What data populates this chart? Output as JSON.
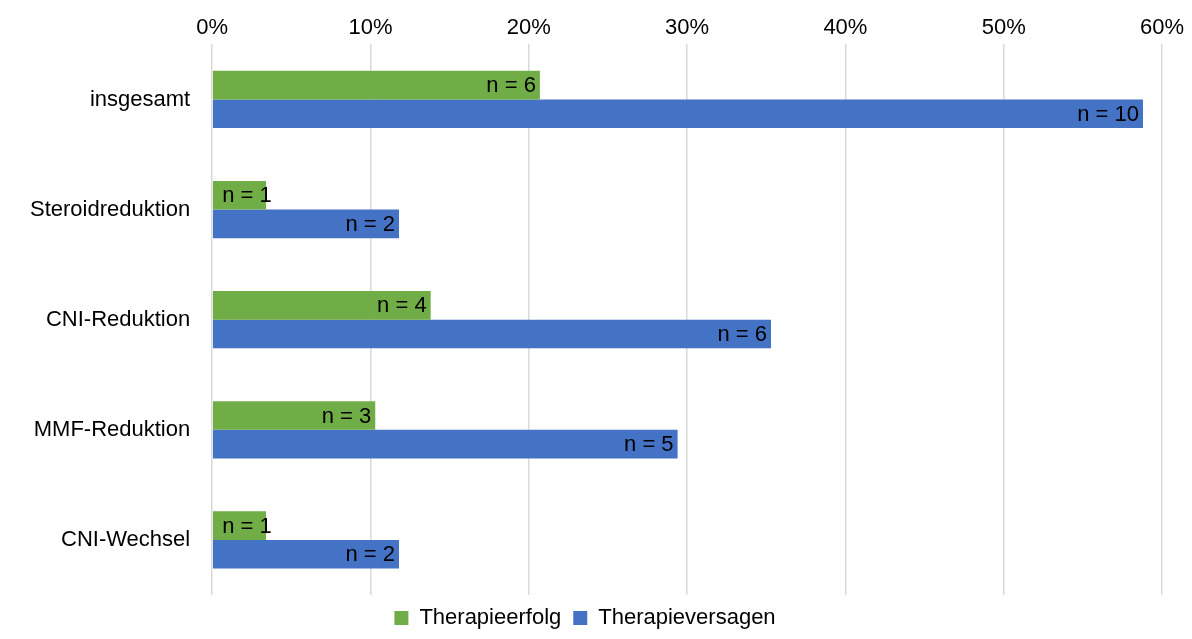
{
  "chart_data": {
    "type": "bar",
    "orientation": "horizontal",
    "categories": [
      "insgesamt",
      "Steroidreduktion",
      "CNI-Reduktion",
      "MMF-Reduktion",
      "CNI-Wechsel"
    ],
    "series": [
      {
        "name": "Therapieerfolg",
        "color": "#70ad47",
        "values": [
          20.7,
          3.4,
          13.8,
          10.3,
          3.4
        ]
      },
      {
        "name": "Therapieversagen",
        "color": "#4472c4",
        "values": [
          58.8,
          11.8,
          35.3,
          29.4,
          11.8
        ]
      }
    ],
    "annotations": [
      {
        "text": "n = 6",
        "x": 20.7,
        "y": "insgesamt"
      },
      {
        "text": "n = 10",
        "x": 58.8,
        "y": "insgesamt"
      },
      {
        "text": "n = 1",
        "x": 3.4,
        "y": "Steroidreduktion"
      },
      {
        "text": "n = 2",
        "x": 11.8,
        "y": "Steroidreduktion"
      },
      {
        "text": "n = 4",
        "x": 13.8,
        "y": "CNI-Reduktion"
      },
      {
        "text": "n = 6",
        "x": 35.3,
        "y": "CNI-Reduktion"
      },
      {
        "text": "n = 3",
        "x": 10.3,
        "y": "MMF-Reduktion"
      },
      {
        "text": "n = 5",
        "x": 29.4,
        "y": "MMF-Reduktion"
      },
      {
        "text": "n = 1",
        "x": 3.4,
        "y": "CNI-Wechsel"
      },
      {
        "text": "n = 2",
        "x": 11.8,
        "y": "CNI-Wechsel"
      }
    ],
    "xlim": [
      0,
      60
    ],
    "xticks": [
      {
        "value": 0,
        "label": "0%"
      },
      {
        "value": 10,
        "label": "10%"
      },
      {
        "value": 20,
        "label": "20%"
      },
      {
        "value": 30,
        "label": "30%"
      },
      {
        "value": 40,
        "label": "40%"
      },
      {
        "value": 50,
        "label": "50%"
      },
      {
        "value": 60,
        "label": "60%"
      }
    ],
    "grid": "x",
    "legend": "bottom"
  }
}
